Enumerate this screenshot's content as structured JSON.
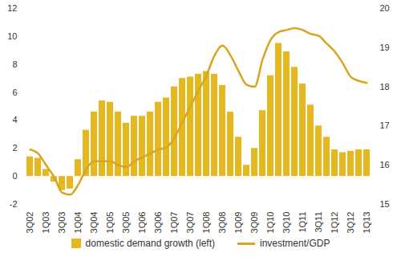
{
  "chart_data": {
    "type": "bar",
    "categories": [
      "3Q02",
      null,
      "1Q03",
      null,
      "3Q03",
      null,
      "1Q04",
      null,
      "3Q04",
      null,
      "1Q05",
      null,
      "3Q05",
      null,
      "1Q06",
      null,
      "3Q06",
      null,
      "1Q07",
      null,
      "3Q07",
      null,
      "1Q08",
      null,
      "3Q08",
      null,
      "1Q09",
      null,
      "3Q09",
      null,
      "1Q10",
      null,
      "3Q10",
      null,
      "1Q11",
      null,
      "3Q11",
      null,
      "1Q12",
      null,
      "3Q12",
      null,
      "1Q13"
    ],
    "series": [
      {
        "name": "domestic demand growth (left)",
        "type": "bar",
        "color": "#e6b820",
        "values": [
          1.4,
          1.3,
          0.5,
          -0.4,
          -1.0,
          -0.9,
          1.2,
          3.3,
          4.6,
          5.4,
          5.3,
          4.6,
          3.8,
          4.3,
          4.3,
          4.6,
          5.3,
          5.6,
          6.4,
          7.0,
          7.1,
          7.3,
          7.5,
          7.3,
          6.5,
          4.6,
          2.8,
          0.8,
          2.0,
          4.7,
          7.2,
          9.5,
          8.9,
          7.8,
          6.6,
          5.1,
          3.6,
          2.8,
          1.9,
          1.7,
          1.8,
          1.9,
          1.9
        ]
      },
      {
        "name": "investment/GDP",
        "type": "line",
        "axis": "y2",
        "color": "#d9a521",
        "values": [
          16.4,
          16.3,
          16.0,
          15.7,
          15.3,
          15.25,
          15.5,
          15.9,
          16.1,
          16.1,
          16.1,
          16.0,
          15.95,
          16.1,
          16.2,
          16.3,
          16.4,
          16.45,
          16.7,
          17.1,
          17.5,
          17.9,
          18.3,
          18.8,
          19.05,
          18.8,
          18.4,
          18.05,
          18.0,
          18.7,
          19.2,
          19.4,
          19.45,
          19.5,
          19.45,
          19.35,
          19.3,
          19.1,
          18.9,
          18.6,
          18.25,
          18.15,
          18.1
        ]
      }
    ],
    "ylim": [
      -2,
      12
    ],
    "yticks": [
      -2,
      0,
      2,
      4,
      6,
      8,
      10,
      12
    ],
    "y2lim": [
      15,
      20
    ],
    "y2ticks": [
      15,
      16,
      17,
      18,
      19,
      20
    ],
    "grid": false,
    "legend": "bottom"
  }
}
